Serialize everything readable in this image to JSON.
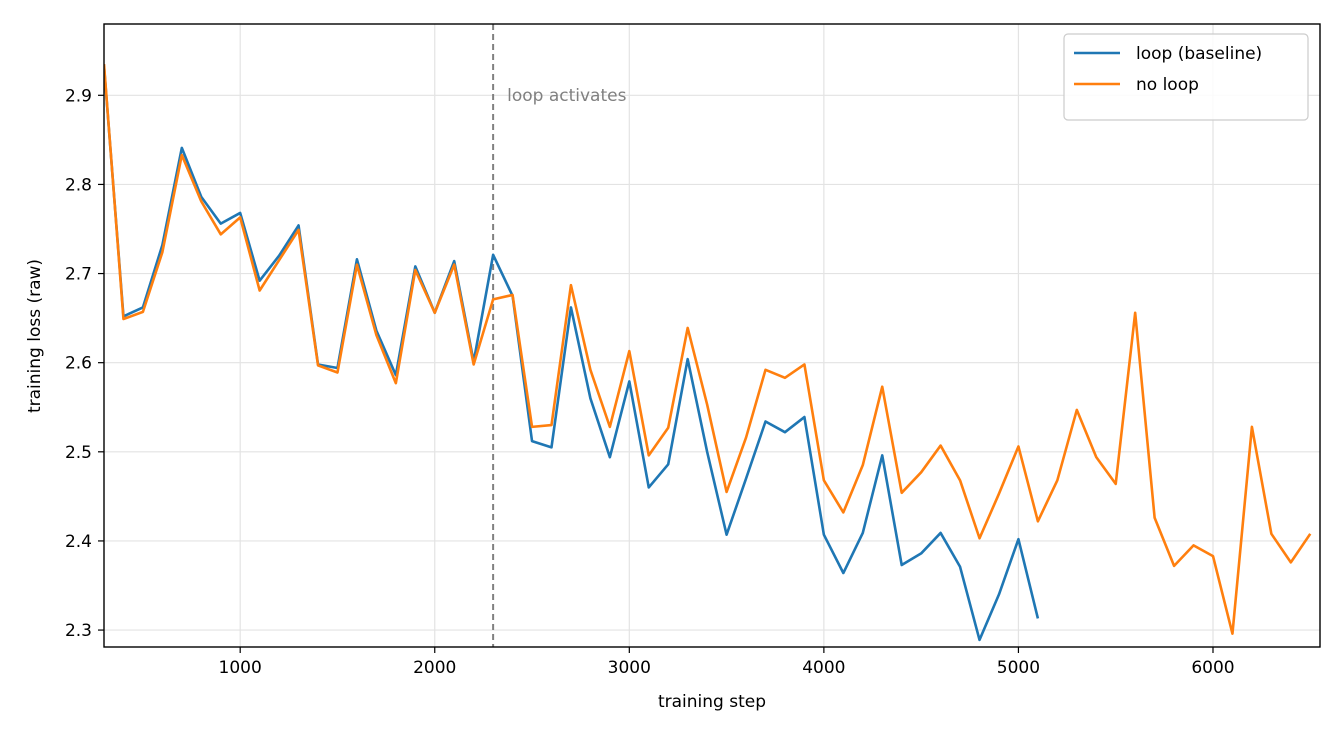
{
  "chart_data": {
    "type": "line",
    "x_label": "training step",
    "y_label": "training loss (raw)",
    "x": [
      300,
      400,
      500,
      600,
      700,
      800,
      900,
      1000,
      1100,
      1200,
      1300,
      1400,
      1500,
      1600,
      1700,
      1800,
      1900,
      2000,
      2100,
      2200,
      2300,
      2400,
      2500,
      2600,
      2700,
      2800,
      2900,
      3000,
      3100,
      3200,
      3300,
      3400,
      3500,
      3600,
      3700,
      3800,
      3900,
      4000,
      4100,
      4200,
      4300,
      4400,
      4500,
      4600,
      4700,
      4800,
      4900,
      5000,
      5100,
      5200,
      5300,
      5400,
      5500,
      5600,
      5700,
      5800,
      5900,
      6000,
      6100,
      6200,
      6300,
      6400,
      6500
    ],
    "series": [
      {
        "name": "loop (baseline)",
        "color": "#1f77b4",
        "values": [
          2.933,
          2.652,
          2.662,
          2.732,
          2.841,
          2.786,
          2.756,
          2.768,
          2.692,
          2.72,
          2.754,
          2.598,
          2.594,
          2.716,
          2.636,
          2.586,
          2.708,
          2.656,
          2.714,
          2.601,
          2.721,
          2.675,
          2.512,
          2.505,
          2.662,
          2.56,
          2.494,
          2.579,
          2.46,
          2.486,
          2.604,
          2.5,
          2.407,
          2.47,
          2.534,
          2.522,
          2.539,
          2.407,
          2.364,
          2.409,
          2.496,
          2.373,
          2.386,
          2.409,
          2.371,
          2.289,
          2.34,
          2.402,
          2.313,
          null,
          null,
          null,
          null,
          null,
          null,
          null,
          null,
          null,
          null,
          null,
          null,
          null,
          null
        ]
      },
      {
        "name": "no loop",
        "color": "#ff7f0e",
        "values": [
          2.935,
          2.649,
          2.657,
          2.724,
          2.833,
          2.781,
          2.744,
          2.763,
          2.681,
          2.715,
          2.749,
          2.597,
          2.589,
          2.71,
          2.631,
          2.577,
          2.704,
          2.656,
          2.71,
          2.598,
          2.671,
          2.676,
          2.528,
          2.53,
          2.687,
          2.592,
          2.528,
          2.613,
          2.496,
          2.527,
          2.639,
          2.553,
          2.455,
          2.516,
          2.592,
          2.583,
          2.598,
          2.468,
          2.432,
          2.485,
          2.573,
          2.454,
          2.477,
          2.507,
          2.468,
          2.403,
          2.453,
          2.506,
          2.422,
          2.468,
          2.547,
          2.494,
          2.464,
          2.656,
          2.426,
          2.372,
          2.395,
          2.383,
          2.296,
          2.528,
          2.408,
          2.376,
          2.408
        ]
      }
    ],
    "xlim": [
      300,
      6550
    ],
    "ylim": [
      2.281,
      2.98
    ],
    "xticks": [
      1000,
      2000,
      3000,
      4000,
      5000,
      6000
    ],
    "yticks": [
      2.3,
      2.4,
      2.5,
      2.6,
      2.7,
      2.8,
      2.9
    ],
    "grid": true,
    "legend": "upper right",
    "annotations": [
      {
        "x": 2300,
        "text": "loop activates",
        "color": "#808080"
      }
    ]
  }
}
